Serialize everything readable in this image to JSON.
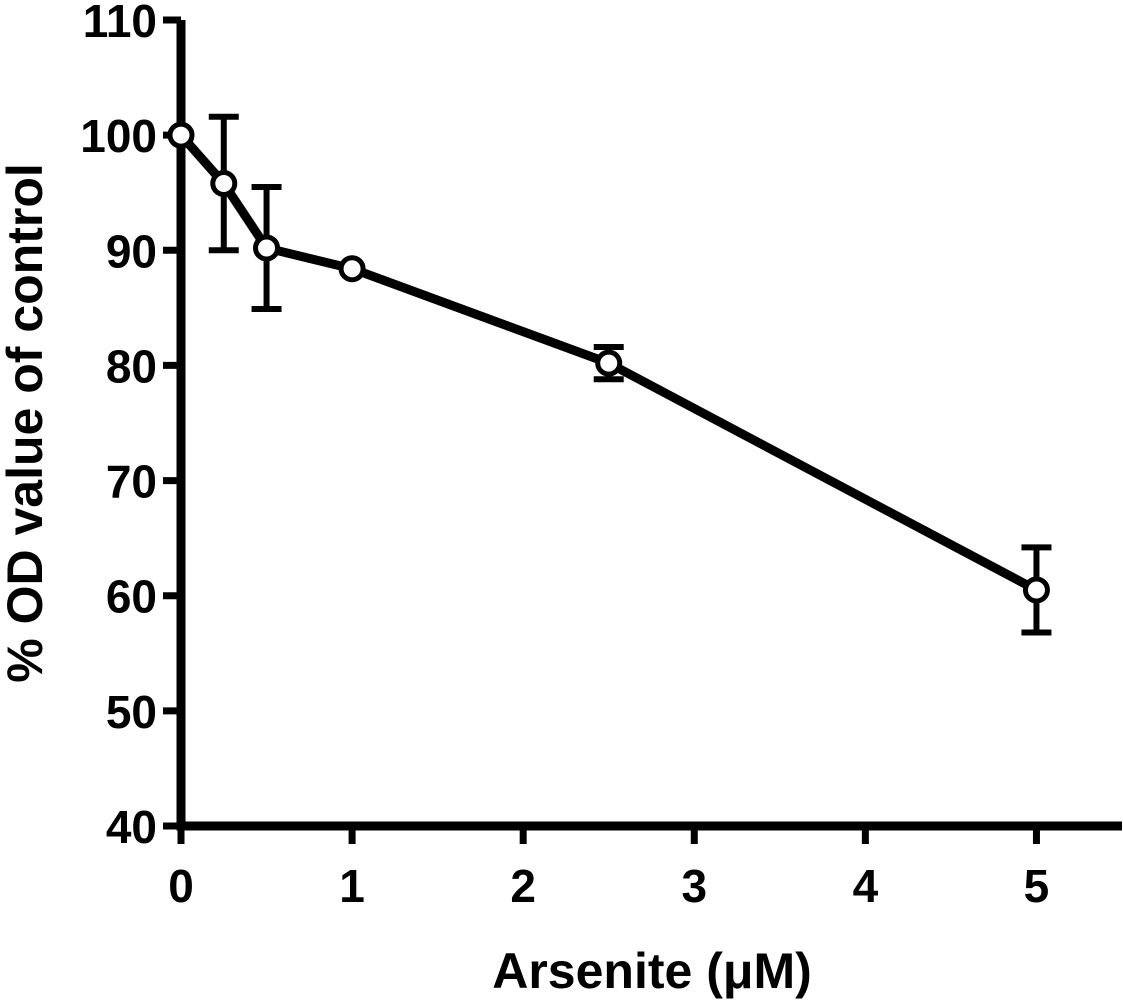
{
  "chart_data": {
    "type": "line",
    "xlabel": "Arsenite (μM)",
    "ylabel": "% OD value of control",
    "xlim": [
      0,
      5.5
    ],
    "ylim": [
      40,
      110
    ],
    "x_ticks": [
      0,
      1,
      2,
      3,
      4,
      5
    ],
    "y_ticks": [
      40,
      50,
      60,
      70,
      80,
      90,
      100,
      110
    ],
    "grid": false,
    "legend": "none",
    "series": [
      {
        "x": [
          0,
          0.25,
          0.5,
          1,
          2.5,
          5
        ],
        "y": [
          100,
          95.8,
          90.2,
          88.4,
          80.2,
          60.5
        ],
        "error": [
          0,
          5.8,
          5.3,
          0,
          1.4,
          3.7
        ],
        "marker": "open-circle",
        "color": "#000000"
      }
    ]
  }
}
